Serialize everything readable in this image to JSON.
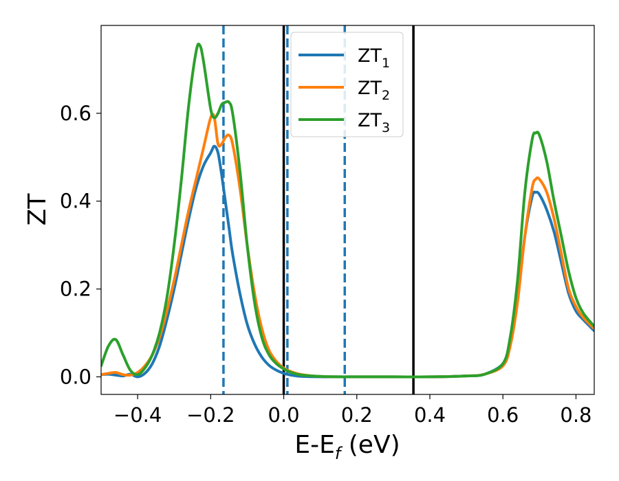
{
  "chart_data": {
    "type": "line",
    "xlabel": "E-E",
    "xlabel_sub": "f",
    "xlabel_unit": " (eV)",
    "ylabel": "ZT",
    "xlim": [
      -0.5,
      0.85
    ],
    "ylim": [
      -0.04,
      0.8
    ],
    "xticks": [
      -0.4,
      -0.2,
      0.0,
      0.2,
      0.4,
      0.6,
      0.8
    ],
    "xtick_labels": [
      "−0.4",
      "−0.2",
      "0.0",
      "0.2",
      "0.4",
      "0.6",
      "0.8"
    ],
    "yticks": [
      0.0,
      0.2,
      0.4,
      0.6
    ],
    "ytick_labels": [
      "0.0",
      "0.2",
      "0.4",
      "0.6"
    ],
    "grid": false,
    "legend": {
      "position": "top-center"
    },
    "series": [
      {
        "name": "ZT",
        "sub": "1",
        "color": "#1f77b4",
        "x": [
          -0.5,
          -0.48,
          -0.46,
          -0.44,
          -0.42,
          -0.4,
          -0.38,
          -0.36,
          -0.34,
          -0.32,
          -0.3,
          -0.28,
          -0.26,
          -0.24,
          -0.22,
          -0.2,
          -0.19,
          -0.18,
          -0.17,
          -0.16,
          -0.15,
          -0.14,
          -0.12,
          -0.1,
          -0.08,
          -0.06,
          -0.04,
          -0.02,
          0.0,
          0.02,
          0.05,
          0.1,
          0.15,
          0.2,
          0.3,
          0.4,
          0.5,
          0.55,
          0.6,
          0.62,
          0.64,
          0.66,
          0.68,
          0.69,
          0.7,
          0.72,
          0.74,
          0.76,
          0.78,
          0.8,
          0.82,
          0.85
        ],
        "y": [
          0.005,
          0.006,
          0.004,
          0.002,
          0.006,
          0.0,
          0.008,
          0.03,
          0.07,
          0.13,
          0.2,
          0.28,
          0.36,
          0.43,
          0.48,
          0.51,
          0.525,
          0.51,
          0.46,
          0.4,
          0.34,
          0.28,
          0.19,
          0.12,
          0.075,
          0.045,
          0.026,
          0.015,
          0.008,
          0.004,
          0.001,
          0.0,
          0.0,
          0.0,
          0.0,
          0.0,
          0.002,
          0.006,
          0.03,
          0.08,
          0.18,
          0.32,
          0.41,
          0.42,
          0.415,
          0.38,
          0.33,
          0.26,
          0.19,
          0.15,
          0.13,
          0.105
        ]
      },
      {
        "name": "ZT",
        "sub": "2",
        "color": "#ff7f0e",
        "x": [
          -0.5,
          -0.48,
          -0.46,
          -0.44,
          -0.42,
          -0.4,
          -0.38,
          -0.36,
          -0.34,
          -0.32,
          -0.3,
          -0.28,
          -0.26,
          -0.24,
          -0.22,
          -0.2,
          -0.19,
          -0.18,
          -0.17,
          -0.16,
          -0.15,
          -0.14,
          -0.12,
          -0.1,
          -0.08,
          -0.06,
          -0.04,
          -0.02,
          0.0,
          0.02,
          0.05,
          0.1,
          0.15,
          0.2,
          0.3,
          0.4,
          0.5,
          0.55,
          0.6,
          0.62,
          0.64,
          0.66,
          0.68,
          0.69,
          0.7,
          0.72,
          0.74,
          0.76,
          0.78,
          0.8,
          0.82,
          0.85
        ],
        "y": [
          0.005,
          0.008,
          0.01,
          0.005,
          0.004,
          0.01,
          0.025,
          0.05,
          0.09,
          0.15,
          0.22,
          0.3,
          0.38,
          0.45,
          0.52,
          0.59,
          0.59,
          0.53,
          0.53,
          0.545,
          0.55,
          0.53,
          0.43,
          0.3,
          0.19,
          0.11,
          0.06,
          0.035,
          0.02,
          0.012,
          0.005,
          0.001,
          0.0,
          0.0,
          0.0,
          0.0,
          0.002,
          0.006,
          0.025,
          0.07,
          0.17,
          0.32,
          0.43,
          0.45,
          0.45,
          0.42,
          0.36,
          0.28,
          0.2,
          0.16,
          0.135,
          0.11
        ]
      },
      {
        "name": "ZT",
        "sub": "3",
        "color": "#2ca02c",
        "x": [
          -0.5,
          -0.48,
          -0.46,
          -0.44,
          -0.42,
          -0.4,
          -0.38,
          -0.36,
          -0.34,
          -0.32,
          -0.3,
          -0.28,
          -0.26,
          -0.24,
          -0.23,
          -0.22,
          -0.2,
          -0.19,
          -0.18,
          -0.17,
          -0.16,
          -0.15,
          -0.14,
          -0.12,
          -0.1,
          -0.08,
          -0.06,
          -0.04,
          -0.02,
          0.0,
          0.02,
          0.05,
          0.1,
          0.15,
          0.2,
          0.3,
          0.4,
          0.5,
          0.55,
          0.6,
          0.62,
          0.64,
          0.66,
          0.68,
          0.69,
          0.7,
          0.72,
          0.74,
          0.76,
          0.78,
          0.8,
          0.82,
          0.85
        ],
        "y": [
          0.025,
          0.07,
          0.085,
          0.05,
          0.015,
          0.005,
          0.02,
          0.05,
          0.1,
          0.18,
          0.3,
          0.45,
          0.62,
          0.74,
          0.755,
          0.72,
          0.61,
          0.59,
          0.6,
          0.62,
          0.625,
          0.625,
          0.6,
          0.47,
          0.3,
          0.17,
          0.09,
          0.05,
          0.03,
          0.018,
          0.01,
          0.004,
          0.001,
          0.0,
          0.0,
          0.0,
          0.0,
          0.002,
          0.006,
          0.03,
          0.09,
          0.22,
          0.42,
          0.54,
          0.555,
          0.55,
          0.49,
          0.4,
          0.32,
          0.24,
          0.18,
          0.145,
          0.115
        ]
      }
    ],
    "vlines": [
      {
        "x": 0.0,
        "style": "solid",
        "color": "#000000"
      },
      {
        "x": 0.355,
        "style": "solid",
        "color": "#000000"
      },
      {
        "x": -0.165,
        "style": "dashed",
        "color": "#1f77b4"
      },
      {
        "x": 0.01,
        "style": "dashed",
        "color": "#1f77b4"
      },
      {
        "x": 0.167,
        "style": "dashed",
        "color": "#1f77b4"
      }
    ]
  }
}
